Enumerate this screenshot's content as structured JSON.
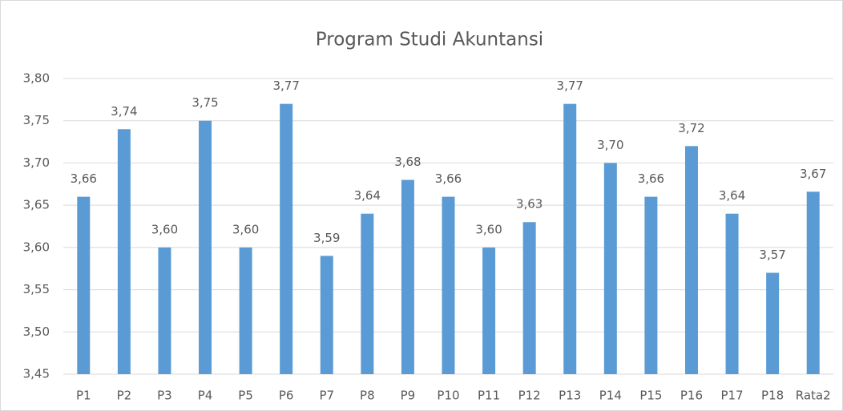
{
  "chart_data": {
    "type": "bar",
    "title": "Program Studi Akuntansi",
    "categories": [
      "P1",
      "P2",
      "P3",
      "P4",
      "P5",
      "P6",
      "P7",
      "P8",
      "P9",
      "P10",
      "P11",
      "P12",
      "P13",
      "P14",
      "P15",
      "P16",
      "P17",
      "P18",
      "Rata2"
    ],
    "values": [
      3.66,
      3.74,
      3.6,
      3.75,
      3.6,
      3.77,
      3.59,
      3.64,
      3.68,
      3.66,
      3.6,
      3.63,
      3.77,
      3.7,
      3.66,
      3.72,
      3.64,
      3.57,
      3.666
    ],
    "value_labels": [
      "3,66",
      "3,74",
      "3,60",
      "3,75",
      "3,60",
      "3,77",
      "3,59",
      "3,64",
      "3,68",
      "3,66",
      "3,60",
      "3,63",
      "3,77",
      "3,70",
      "3,66",
      "3,72",
      "3,64",
      "3,57",
      "3,67"
    ],
    "color": "#5b9bd5",
    "ylim": [
      3.45,
      3.8
    ],
    "yticks": [
      {
        "value": 3.45,
        "label": "3,45"
      },
      {
        "value": 3.5,
        "label": "3,50"
      },
      {
        "value": 3.55,
        "label": "3,55"
      },
      {
        "value": 3.6,
        "label": "3,60"
      },
      {
        "value": 3.65,
        "label": "3,65"
      },
      {
        "value": 3.7,
        "label": "3,70"
      },
      {
        "value": 3.75,
        "label": "3,75"
      },
      {
        "value": 3.8,
        "label": "3,80"
      }
    ],
    "grid": true
  }
}
